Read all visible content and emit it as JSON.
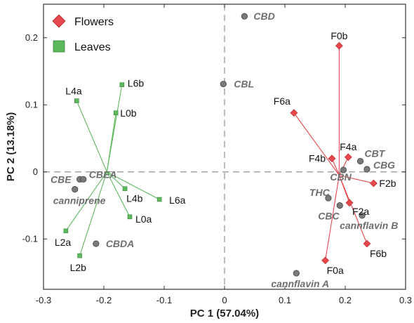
{
  "chart_data": {
    "type": "scatter",
    "title": "",
    "xlabel": "PC 1 (57.04%)",
    "ylabel": "PC 2 (13.18%)",
    "xlim": [
      -0.3,
      0.3
    ],
    "ylim": [
      -0.175,
      0.25
    ],
    "x_ticks": [
      -0.3,
      -0.2,
      -0.1,
      0,
      0.1,
      0.2,
      0.3
    ],
    "x_tick_labels": [
      "-0.3",
      "-0.2",
      "-0.1",
      "0",
      "0.1",
      "0.2",
      "0.3"
    ],
    "y_ticks": [
      -0.1,
      0,
      0.1,
      0.2
    ],
    "y_tick_labels": [
      "-0.1",
      "0",
      "0.1",
      "0.2"
    ],
    "legend": {
      "position": "top-left",
      "entries": [
        {
          "label": "Flowers",
          "color": "#e8474b",
          "marker": "diamond"
        },
        {
          "label": "Leaves",
          "color": "#5cb85c",
          "marker": "square"
        }
      ]
    },
    "series": [
      {
        "name": "Flowers",
        "color": "#e8474b",
        "marker": "diamond",
        "center": [
          0.19,
          -0.005
        ],
        "points": [
          {
            "label": "F0b",
            "x": 0.19,
            "y": 0.188
          },
          {
            "label": "F6a",
            "x": 0.115,
            "y": 0.088
          },
          {
            "label": "F4a",
            "x": 0.205,
            "y": 0.022
          },
          {
            "label": "F4b",
            "x": 0.178,
            "y": 0.02
          },
          {
            "label": "F2b",
            "x": 0.247,
            "y": -0.017
          },
          {
            "label": "F2a",
            "x": 0.207,
            "y": -0.046
          },
          {
            "label": "F6b",
            "x": 0.236,
            "y": -0.107
          },
          {
            "label": "F0a",
            "x": 0.167,
            "y": -0.132
          }
        ]
      },
      {
        "name": "Leaves",
        "color": "#5cb85c",
        "marker": "square",
        "center": [
          -0.195,
          0.0
        ],
        "points": [
          {
            "label": "L6b",
            "x": -0.17,
            "y": 0.13
          },
          {
            "label": "L4a",
            "x": -0.245,
            "y": 0.106
          },
          {
            "label": "L0b",
            "x": -0.18,
            "y": 0.088
          },
          {
            "label": "L4b",
            "x": -0.165,
            "y": -0.025
          },
          {
            "label": "L6a",
            "x": -0.108,
            "y": -0.041
          },
          {
            "label": "L0a",
            "x": -0.157,
            "y": -0.067
          },
          {
            "label": "L2a",
            "x": -0.263,
            "y": -0.088
          },
          {
            "label": "L2b",
            "x": -0.24,
            "y": -0.125
          }
        ]
      }
    ],
    "loadings": [
      {
        "label": "CBD",
        "x": 0.033,
        "y": 0.232
      },
      {
        "label": "CBL",
        "x": -0.002,
        "y": 0.131
      },
      {
        "label": "CBE",
        "x": -0.24,
        "y": -0.011
      },
      {
        "label": "CBEA",
        "x": -0.234,
        "y": -0.011
      },
      {
        "label": "canniprene",
        "x": -0.248,
        "y": -0.026
      },
      {
        "label": "CBDA",
        "x": -0.213,
        "y": -0.107
      },
      {
        "label": "CBT",
        "x": 0.225,
        "y": 0.016
      },
      {
        "label": "CBG",
        "x": 0.236,
        "y": 0.004
      },
      {
        "label": "CBN",
        "x": 0.197,
        "y": 0.003
      },
      {
        "label": "THC",
        "x": 0.172,
        "y": -0.039
      },
      {
        "label": "CBC",
        "x": 0.191,
        "y": -0.05
      },
      {
        "label": "cannflavin B",
        "x": 0.228,
        "y": -0.065
      },
      {
        "label": "cannflavin A",
        "x": 0.119,
        "y": -0.151
      }
    ]
  }
}
